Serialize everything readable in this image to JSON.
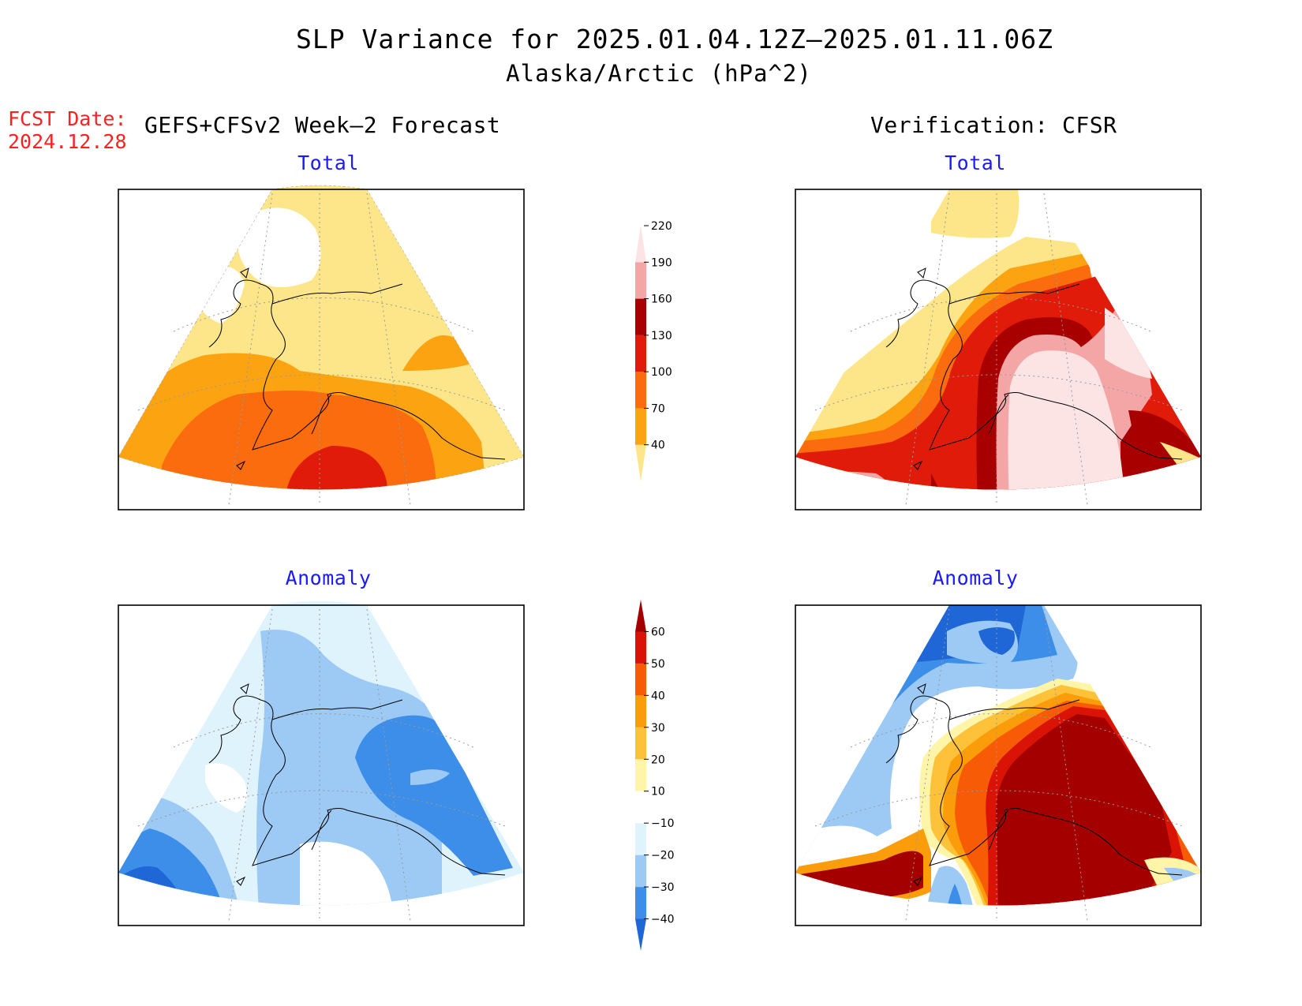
{
  "header": {
    "title_line1": "SLP Variance for 2025.01.04.12Z–2025.01.11.06Z",
    "title_line2": "Alaska/Arctic (hPa^2)",
    "fcst_label": "FCST Date:",
    "fcst_date": "2024.12.28",
    "left_heading": "GEFS+CFSv2 Week–2 Forecast",
    "right_heading": "Verification: CFSR"
  },
  "panels": {
    "top_left_title": "Total",
    "top_right_title": "Total",
    "bottom_left_title": "Anomaly",
    "bottom_right_title": "Anomaly"
  },
  "colorbars": {
    "total": {
      "labels": [
        "40",
        "70",
        "100",
        "130",
        "160",
        "190",
        "220"
      ],
      "colors": [
        "#fde68a",
        "#fca312",
        "#fb6c0e",
        "#e01b0a",
        "#a80000",
        "#f4a6a6",
        "#fde4e4"
      ]
    },
    "anomaly": {
      "labels": [
        "−40",
        "−30",
        "−20",
        "−10",
        "10",
        "20",
        "30",
        "40",
        "50",
        "60"
      ],
      "colors": [
        "#1f66d6",
        "#3c8ee8",
        "#9ccaf5",
        "#dff3fd",
        "#ffffff",
        "#fff5a8",
        "#fdc23a",
        "#fb9d0a",
        "#f75b05",
        "#d91407",
        "#a50000"
      ]
    }
  },
  "colors": {
    "title_red": "#ff2020",
    "subtitle_blue": "#1a1aff"
  }
}
